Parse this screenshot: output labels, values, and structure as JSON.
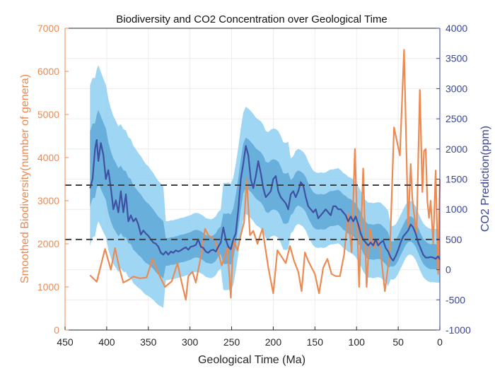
{
  "chart_data": {
    "type": "line",
    "title": "Biodiversity and CO2 Concentration over Geological Time",
    "xlabel": "Geological Time (Ma)",
    "ylabel_left": "Smoothed Biodiversity(number of genera)",
    "ylabel_right": "CO2 Prediction(ppm)",
    "xlim": [
      450,
      0
    ],
    "ylim_left": [
      0,
      7000
    ],
    "ylim_right": [
      -1000,
      4000
    ],
    "x_ticks": [
      450,
      400,
      350,
      300,
      250,
      200,
      150,
      100,
      50,
      0
    ],
    "y_left_ticks": [
      0,
      1000,
      2000,
      3000,
      4000,
      5000,
      6000,
      7000
    ],
    "y_right_ticks": [
      -1000,
      -500,
      0,
      500,
      1000,
      1500,
      2000,
      2500,
      3000,
      3500,
      4000
    ],
    "grid": true,
    "legend": "none",
    "colors": {
      "biodiversity": "#ec8a53",
      "co2": "#3f51a3",
      "band_outer": "#8ecff2",
      "band_inner": "#5aa6d5",
      "threshold": "#404040",
      "left_axis": "#ec8a53",
      "right_axis": "#3a4694"
    },
    "thresholds_ppm": [
      1400,
      500
    ],
    "series": [
      {
        "name": "",
        "axis": "left",
        "x": [
          420,
          412,
          402,
          395,
          390,
          385,
          380,
          375,
          368,
          360,
          352,
          345,
          338,
          330,
          322,
          315,
          310,
          305,
          302,
          297,
          293,
          290,
          286,
          282,
          278,
          270,
          262,
          255,
          251,
          248,
          243,
          239,
          235,
          232,
          228,
          224,
          219,
          213,
          206,
          200,
          195,
          190,
          185,
          180,
          175,
          170,
          166,
          162,
          158,
          150,
          145,
          140,
          135,
          130,
          125,
          120,
          115,
          110,
          106,
          102,
          97,
          92,
          88,
          84,
          79,
          76,
          72,
          66,
          60,
          55,
          48,
          43,
          38,
          35,
          33,
          28,
          24,
          21,
          19,
          17,
          15,
          13,
          11,
          8,
          5,
          2,
          0
        ],
        "values": [
          1270,
          1120,
          1880,
          1400,
          1900,
          1450,
          1100,
          1150,
          1240,
          1200,
          1220,
          1650,
          1320,
          1000,
          1130,
          1550,
          1100,
          700,
          1250,
          1350,
          1100,
          1400,
          1800,
          2350,
          2200,
          2100,
          1500,
          1900,
          750,
          2100,
          1850,
          2200,
          2500,
          3500,
          2200,
          2300,
          2000,
          2350,
          1450,
          850,
          1850,
          1700,
          1550,
          1950,
          1600,
          1350,
          900,
          1800,
          1600,
          1300,
          850,
          1450,
          1650,
          1300,
          1250,
          1250,
          1750,
          2700,
          1800,
          4200,
          1000,
          3750,
          1000,
          2350,
          1900,
          2100,
          1950,
          900,
          1800,
          4700,
          4050,
          6500,
          2400,
          3850,
          3050,
          2200,
          5570,
          3200,
          4150,
          4200,
          3000,
          2600,
          3000,
          2000,
          3700,
          1300,
          3500
        ]
      },
      {
        "name": "",
        "axis": "right",
        "x": [
          420,
          417,
          414,
          412,
          410,
          407,
          404,
          401,
          398,
          395,
          392,
          389,
          386,
          383,
          380,
          377,
          374,
          371,
          368,
          365,
          362,
          359,
          356,
          353,
          350,
          347,
          344,
          341,
          338,
          335,
          332,
          329,
          326,
          323,
          320,
          317,
          314,
          311,
          308,
          305,
          302,
          299,
          296,
          293,
          290,
          287,
          284,
          281,
          278,
          275,
          272,
          269,
          266,
          263,
          260,
          257,
          254,
          251,
          248,
          245,
          242,
          239,
          236,
          233,
          230,
          227,
          224,
          221,
          218,
          215,
          212,
          209,
          206,
          203,
          200,
          197,
          194,
          191,
          188,
          185,
          182,
          179,
          176,
          173,
          170,
          167,
          164,
          161,
          158,
          155,
          152,
          149,
          146,
          143,
          140,
          137,
          134,
          131,
          128,
          125,
          122,
          119,
          116,
          113,
          110,
          107,
          104,
          101,
          98,
          95,
          92,
          89,
          86,
          83,
          80,
          77,
          74,
          71,
          68,
          65,
          62,
          59,
          56,
          53,
          50,
          47,
          44,
          41,
          38,
          35,
          32,
          29,
          26,
          23,
          20,
          17,
          14,
          11,
          8,
          5,
          2,
          0
        ],
        "values": [
          1350,
          1500,
          2000,
          2150,
          1800,
          2100,
          1900,
          1500,
          1650,
          1350,
          1000,
          1150,
          950,
          1300,
          950,
          1250,
          800,
          900,
          800,
          850,
          750,
          580,
          650,
          600,
          560,
          500,
          450,
          430,
          380,
          280,
          250,
          300,
          250,
          300,
          280,
          320,
          300,
          320,
          350,
          370,
          330,
          380,
          390,
          410,
          500,
          380,
          360,
          300,
          280,
          320,
          330,
          300,
          380,
          450,
          700,
          500,
          380,
          340,
          500,
          600,
          1000,
          1500,
          1750,
          2050,
          1900,
          1500,
          1350,
          1550,
          1800,
          1600,
          1350,
          1200,
          1250,
          1300,
          1500,
          1550,
          1300,
          1200,
          1150,
          1100,
          1000,
          1250,
          1300,
          1200,
          1300,
          1450,
          1400,
          1200,
          1050,
          1000,
          950,
          1000,
          850,
          900,
          950,
          1000,
          950,
          900,
          1050,
          1050,
          1000,
          1000,
          950,
          900,
          800,
          880,
          800,
          880,
          750,
          600,
          500,
          450,
          400,
          450,
          400,
          500,
          400,
          450,
          480,
          360,
          300,
          200,
          150,
          230,
          330,
          450,
          550,
          600,
          650,
          750,
          700,
          600,
          450,
          350,
          250,
          200,
          200,
          210,
          200,
          180,
          220,
          170
        ]
      }
    ]
  }
}
